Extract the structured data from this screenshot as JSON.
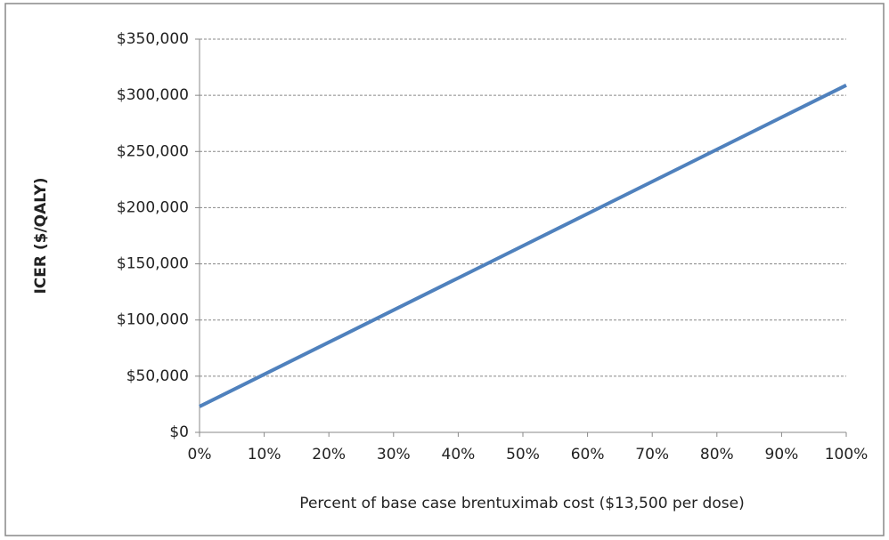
{
  "chart_data": {
    "type": "line",
    "x_label": "Percent of base case brentuximab cost ($13,500 per dose)",
    "y_label": "ICER ($/QALY)",
    "x": [
      0,
      10,
      20,
      30,
      40,
      50,
      60,
      70,
      80,
      90,
      100
    ],
    "values": [
      23000,
      51600,
      80200,
      108800,
      137400,
      166000,
      194600,
      223200,
      251800,
      280400,
      309000
    ],
    "color": "#4f81bd",
    "xlim": [
      0,
      100
    ],
    "xticks": [
      {
        "value": 0,
        "label": "0%"
      },
      {
        "value": 10,
        "label": "10%"
      },
      {
        "value": 20,
        "label": "20%"
      },
      {
        "value": 30,
        "label": "30%"
      },
      {
        "value": 40,
        "label": "40%"
      },
      {
        "value": 50,
        "label": "50%"
      },
      {
        "value": 60,
        "label": "60%"
      },
      {
        "value": 70,
        "label": "70%"
      },
      {
        "value": 80,
        "label": "80%"
      },
      {
        "value": 90,
        "label": "90%"
      },
      {
        "value": 100,
        "label": "100%"
      }
    ],
    "ylim": [
      0,
      350000
    ],
    "yticks": [
      {
        "value": 0,
        "label": "$0"
      },
      {
        "value": 50000,
        "label": "$50,000"
      },
      {
        "value": 100000,
        "label": "$100,000"
      },
      {
        "value": 150000,
        "label": "$150,000"
      },
      {
        "value": 200000,
        "label": "$200,000"
      },
      {
        "value": 250000,
        "label": "$250,000"
      },
      {
        "value": 300000,
        "label": "$300,000"
      },
      {
        "value": 350000,
        "label": "$350,000"
      }
    ],
    "grid": true
  }
}
